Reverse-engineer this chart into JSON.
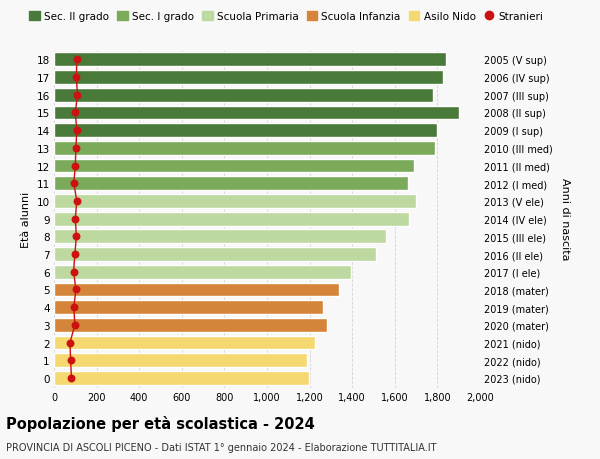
{
  "ages": [
    18,
    17,
    16,
    15,
    14,
    13,
    12,
    11,
    10,
    9,
    8,
    7,
    6,
    5,
    4,
    3,
    2,
    1,
    0
  ],
  "years_labels": [
    "2005 (V sup)",
    "2006 (IV sup)",
    "2007 (III sup)",
    "2008 (II sup)",
    "2009 (I sup)",
    "2010 (III med)",
    "2011 (II med)",
    "2012 (I med)",
    "2013 (V ele)",
    "2014 (IV ele)",
    "2015 (III ele)",
    "2016 (II ele)",
    "2017 (I ele)",
    "2018 (mater)",
    "2019 (mater)",
    "2020 (mater)",
    "2021 (nido)",
    "2022 (nido)",
    "2023 (nido)"
  ],
  "bar_values": [
    1840,
    1825,
    1780,
    1900,
    1800,
    1790,
    1690,
    1660,
    1700,
    1665,
    1560,
    1510,
    1395,
    1340,
    1265,
    1280,
    1225,
    1190,
    1195
  ],
  "stranieri_values": [
    107,
    105,
    110,
    100,
    107,
    103,
    100,
    93,
    107,
    100,
    105,
    98,
    92,
    103,
    93,
    98,
    75,
    78,
    82
  ],
  "bar_colors": [
    "#4a7a3a",
    "#4a7a3a",
    "#4a7a3a",
    "#4a7a3a",
    "#4a7a3a",
    "#7aaa5a",
    "#7aaa5a",
    "#7aaa5a",
    "#bdd9a0",
    "#bdd9a0",
    "#bdd9a0",
    "#bdd9a0",
    "#bdd9a0",
    "#d4853a",
    "#d4853a",
    "#d4853a",
    "#f5d870",
    "#f5d870",
    "#f5d870"
  ],
  "legend_labels": [
    "Sec. II grado",
    "Sec. I grado",
    "Scuola Primaria",
    "Scuola Infanzia",
    "Asilo Nido",
    "Stranieri"
  ],
  "legend_colors": [
    "#4a7a3a",
    "#7aaa5a",
    "#bdd9a0",
    "#d4853a",
    "#f5d870",
    "#cc1111"
  ],
  "ylabel_left": "Età alunni",
  "ylabel_right": "Anni di nascita",
  "title": "Popolazione per età scolastica - 2024",
  "subtitle": "PROVINCIA DI ASCOLI PICENO - Dati ISTAT 1° gennaio 2024 - Elaborazione TUTTITALIA.IT",
  "xlim": [
    0,
    2000
  ],
  "background_color": "#f8f8f8",
  "grid_color": "#d0d0d0"
}
